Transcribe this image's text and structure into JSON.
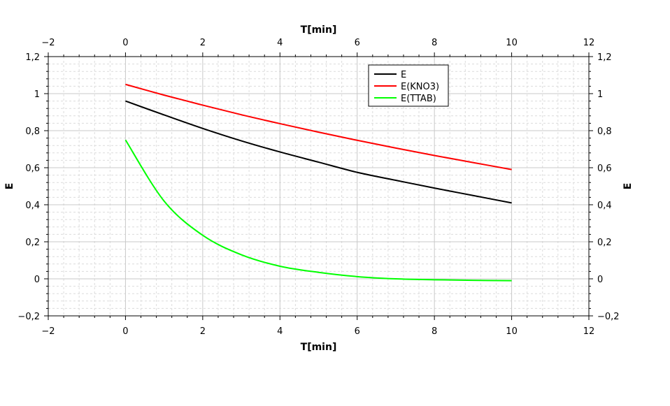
{
  "chart_data": {
    "type": "line",
    "title": "",
    "xlabel": "T[min]",
    "ylabel": "E",
    "xlim": [
      -2,
      12
    ],
    "ylim": [
      -0.2,
      1.2
    ],
    "x_ticks": [
      -2,
      0,
      2,
      4,
      6,
      8,
      10,
      12
    ],
    "x_tick_labels": [
      "−2",
      "0",
      "2",
      "4",
      "6",
      "8",
      "10",
      "12"
    ],
    "y_ticks": [
      -0.2,
      0,
      0.2,
      0.4,
      0.6,
      0.8,
      1,
      1.2
    ],
    "y_tick_labels": [
      "−0,2",
      "0",
      "0,2",
      "0,4",
      "0,6",
      "0,8",
      "1",
      "1,2"
    ],
    "grid": true,
    "legend_position": "top-right",
    "x": [
      0,
      1,
      2,
      3,
      4,
      5,
      6,
      7,
      8,
      9,
      10
    ],
    "series": [
      {
        "name": "E",
        "color": "#000000",
        "values": [
          0.96,
          0.885,
          0.812,
          0.745,
          0.685,
          0.63,
          0.575,
          0.532,
          0.49,
          0.45,
          0.41
        ]
      },
      {
        "name": "E(KNO3)",
        "color": "#ff0000",
        "values": [
          1.05,
          0.992,
          0.938,
          0.886,
          0.838,
          0.792,
          0.748,
          0.706,
          0.666,
          0.628,
          0.59
        ]
      },
      {
        "name": "E(TTAB)",
        "color": "#00ff00",
        "values": [
          0.75,
          0.42,
          0.235,
          0.13,
          0.068,
          0.035,
          0.012,
          0.0,
          -0.005,
          -0.008,
          -0.01
        ]
      }
    ]
  }
}
